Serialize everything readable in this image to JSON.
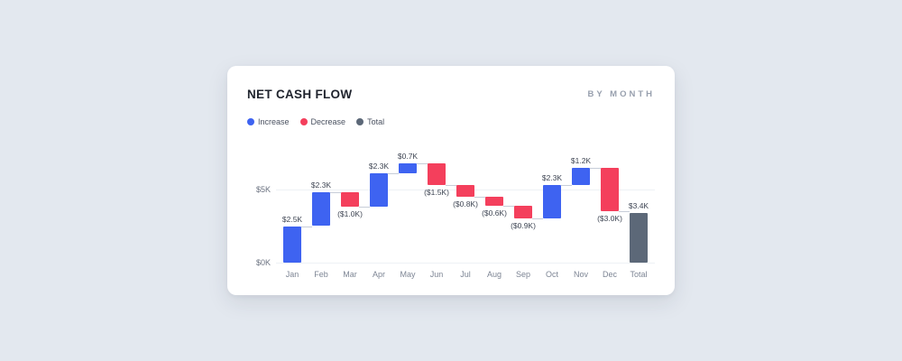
{
  "page": {
    "background_color": "#e3e8ef"
  },
  "card": {
    "title": "NET CASH FLOW",
    "subtitle": "BY MONTH"
  },
  "legend": [
    {
      "key": "increase",
      "label": "Increase"
    },
    {
      "key": "decrease",
      "label": "Decrease"
    },
    {
      "key": "total",
      "label": "Total"
    }
  ],
  "colors": {
    "increase": "#3e63f1",
    "decrease": "#f43f5c",
    "total": "#5c6878",
    "connector": "#c7cdd8"
  },
  "chart_data": {
    "type": "bar",
    "subtype": "waterfall",
    "title": "NET CASH FLOW",
    "subtitle": "BY MONTH",
    "legend_position": "top-left",
    "legend_entries": [
      "Increase",
      "Decrease",
      "Total"
    ],
    "categories": [
      "Jan",
      "Feb",
      "Mar",
      "Apr",
      "May",
      "Jun",
      "Jul",
      "Aug",
      "Sep",
      "Oct",
      "Nov",
      "Dec",
      "Total"
    ],
    "y_axis": {
      "ticks": [
        {
          "label": "$5K",
          "value": 5
        },
        {
          "label": "$0K",
          "value": 0
        }
      ],
      "range": [
        0,
        7
      ]
    },
    "bars": [
      {
        "label": "Jan",
        "kind": "increase",
        "value": 2.5,
        "display": "$2.5K"
      },
      {
        "label": "Feb",
        "kind": "increase",
        "value": 2.3,
        "display": "$2.3K"
      },
      {
        "label": "Mar",
        "kind": "decrease",
        "value": 1.0,
        "display": "($1.0K)"
      },
      {
        "label": "Apr",
        "kind": "increase",
        "value": 2.3,
        "display": "$2.3K"
      },
      {
        "label": "May",
        "kind": "increase",
        "value": 0.7,
        "display": "$0.7K"
      },
      {
        "label": "Jun",
        "kind": "decrease",
        "value": 1.5,
        "display": "($1.5K)"
      },
      {
        "label": "Jul",
        "kind": "decrease",
        "value": 0.8,
        "display": "($0.8K)"
      },
      {
        "label": "Aug",
        "kind": "decrease",
        "value": 0.6,
        "display": "($0.6K)"
      },
      {
        "label": "Sep",
        "kind": "decrease",
        "value": 0.9,
        "display": "($0.9K)"
      },
      {
        "label": "Oct",
        "kind": "increase",
        "value": 2.3,
        "display": "$2.3K"
      },
      {
        "label": "Nov",
        "kind": "increase",
        "value": 1.2,
        "display": "$1.2K"
      },
      {
        "label": "Dec",
        "kind": "decrease",
        "value": 3.0,
        "display": "($3.0K)"
      },
      {
        "label": "Total",
        "kind": "total",
        "value": 3.4,
        "display": "$3.4K"
      }
    ]
  }
}
